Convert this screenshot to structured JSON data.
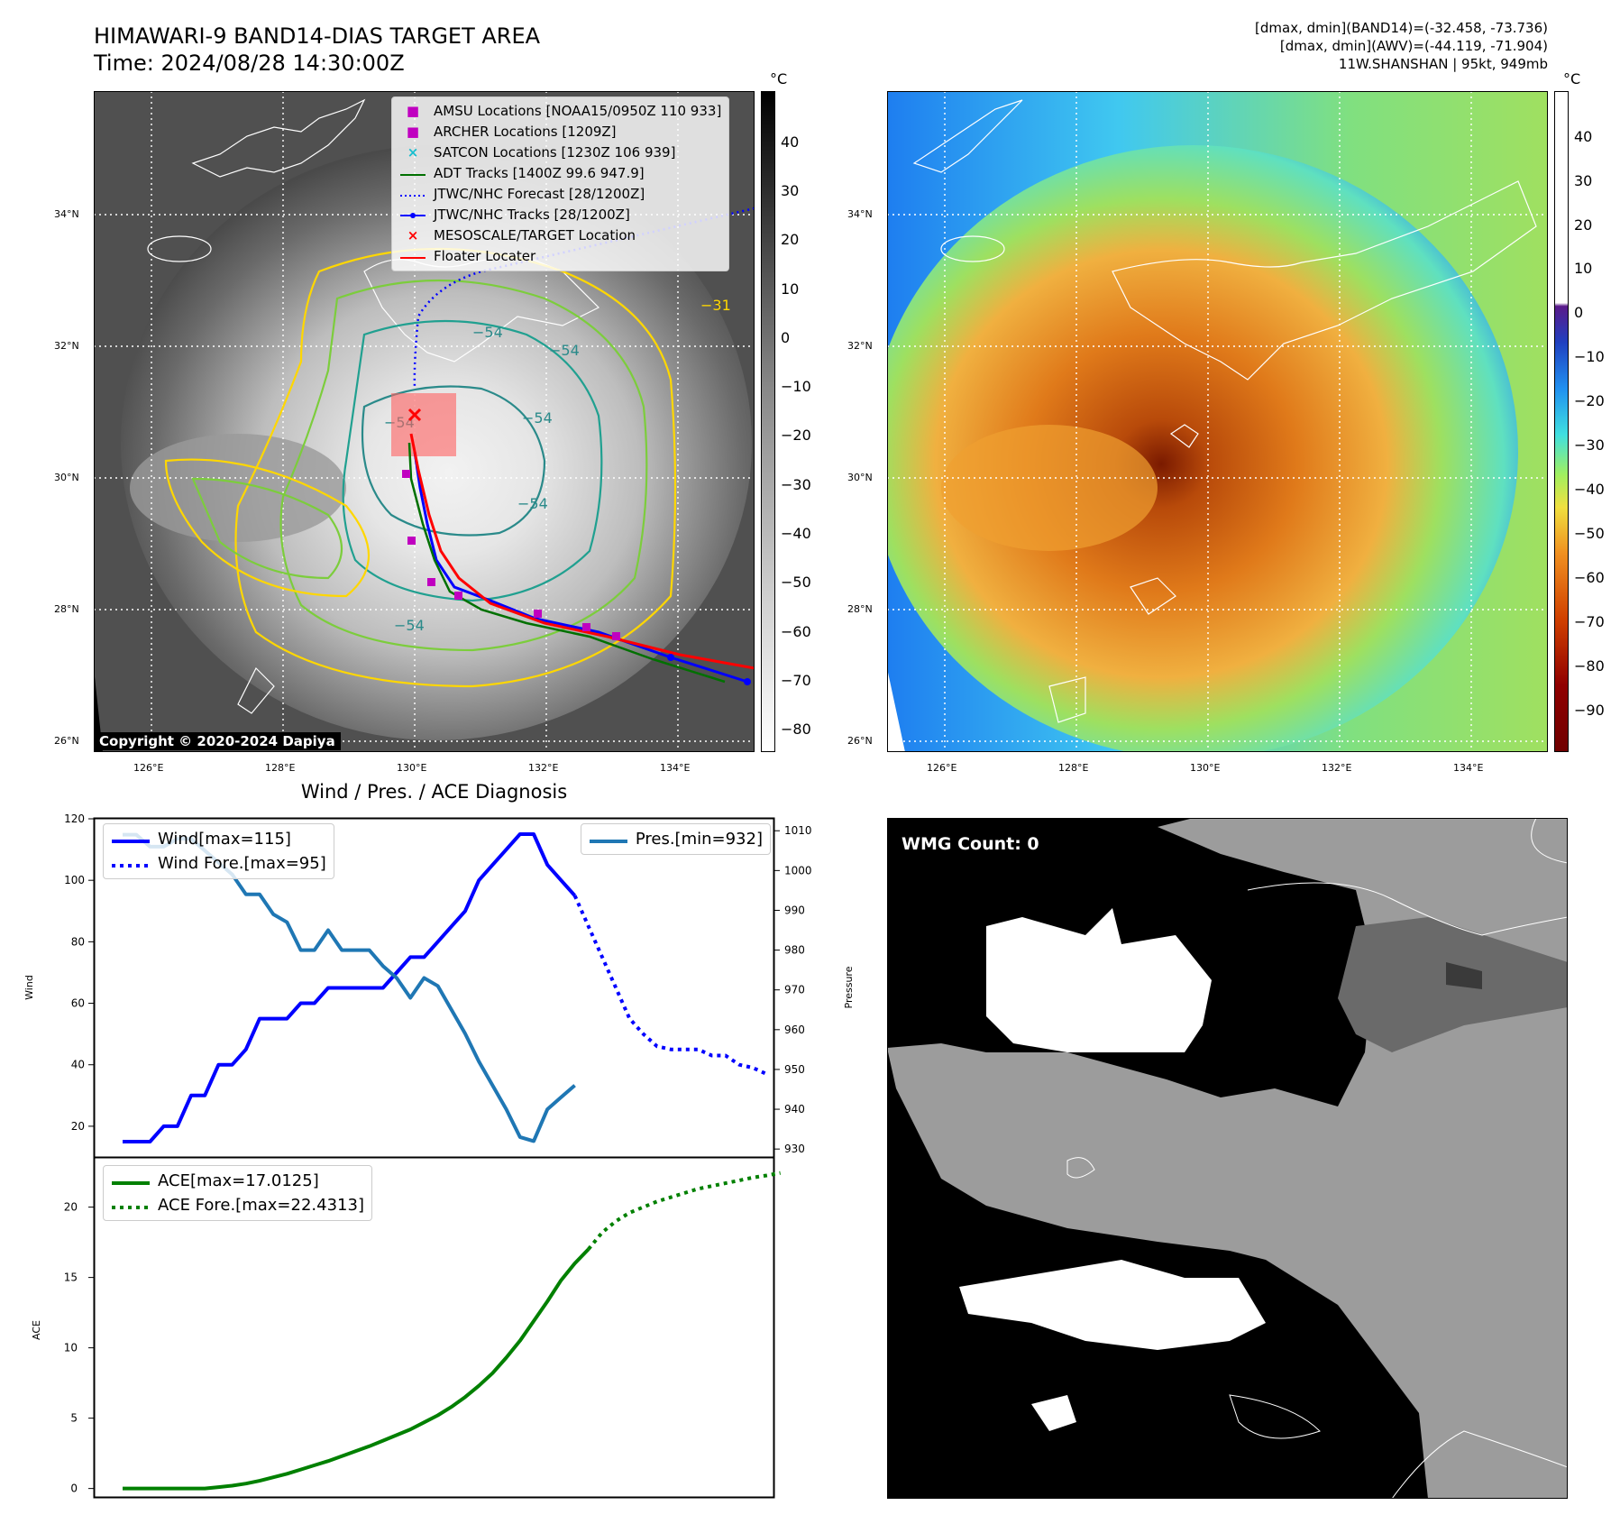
{
  "header": {
    "title": "HIMAWARI-9 BAND14-DIAS TARGET AREA",
    "time": "Time: 2024/08/28 14:30:00Z",
    "info_line1": "[dmax, dmin](BAND14)=(-32.458, -73.736)",
    "info_line2": "[dmax, dmin](AWV)=(-44.119, -71.904)",
    "info_line3": "11W.SHANSHAN | 95kt, 949mb"
  },
  "maps": {
    "lat_labels": [
      "34°N",
      "32°N",
      "30°N",
      "28°N",
      "26°N"
    ],
    "lon_labels": [
      "126°E",
      "128°E",
      "130°E",
      "132°E",
      "134°E"
    ],
    "copyright": "Copyright © 2020-2024 Dapiya",
    "contour_labels": [
      "−54",
      "−54",
      "−54",
      "−54",
      "−54",
      "−54",
      "−31"
    ],
    "legend": [
      {
        "label": "AMSU Locations [NOAA15/0950Z 110 933]",
        "symbol": "square",
        "color": "#c000c0"
      },
      {
        "label": "ARCHER Locations [1209Z]",
        "symbol": "square",
        "color": "#c000c0"
      },
      {
        "label": "SATCON Locations [1230Z 106 939]",
        "symbol": "x",
        "color": "#17becf"
      },
      {
        "label": "ADT Tracks [1400Z 99.6 947.9]",
        "symbol": "line",
        "color": "#007000"
      },
      {
        "label": "JTWC/NHC Forecast [28/1200Z]",
        "symbol": "dotted",
        "color": "#0000ff"
      },
      {
        "label": "JTWC/NHC Tracks [28/1200Z]",
        "symbol": "dotline",
        "color": "#0000ff"
      },
      {
        "label": "MESOSCALE/TARGET Location",
        "symbol": "x",
        "color": "#ff0000"
      },
      {
        "label": "Floater Locater",
        "symbol": "line",
        "color": "#ff0000"
      }
    ],
    "cb1": {
      "unit": "°C",
      "ticks": [
        "40",
        "30",
        "20",
        "10",
        "0",
        "−10",
        "−20",
        "−30",
        "−40",
        "−50",
        "−60",
        "−70",
        "−80"
      ]
    },
    "cb2": {
      "unit": "°C",
      "ticks": [
        "40",
        "30",
        "20",
        "10",
        "0",
        "−10",
        "−20",
        "−30",
        "−40",
        "−50",
        "−60",
        "−70",
        "−80",
        "−90"
      ]
    }
  },
  "wmg": {
    "label": "WMG Count: 0"
  },
  "chart_data": [
    {
      "type": "line",
      "title": "Wind / Pres. / ACE Diagnosis",
      "ylabel": "Wind",
      "ylabel_right": "Pressure",
      "ylim": [
        10,
        120
      ],
      "ylim_right": [
        928,
        1013
      ],
      "yticks": [
        "120",
        "100",
        "80",
        "60",
        "40",
        "20"
      ],
      "yticks_right": [
        "1010",
        "1000",
        "990",
        "980",
        "970",
        "960",
        "950",
        "940",
        "930"
      ],
      "series": [
        {
          "name": "Wind[max=115]",
          "color": "#0000ff",
          "style": "solid",
          "values": [
            15,
            15,
            15,
            20,
            20,
            30,
            30,
            40,
            40,
            45,
            55,
            55,
            55,
            60,
            60,
            65,
            65,
            65,
            65,
            65,
            70,
            75,
            75,
            80,
            85,
            90,
            100,
            105,
            110,
            115,
            115,
            105,
            100,
            95
          ]
        },
        {
          "name": "Wind Fore.[max=95]",
          "color": "#0000ff",
          "style": "dotted",
          "x_start": 33,
          "values": [
            95,
            85,
            75,
            65,
            55,
            50,
            46,
            45,
            45,
            45,
            43,
            43,
            40,
            39,
            37
          ]
        },
        {
          "name": "Pres.[min=932]",
          "color": "#1f77b4",
          "style": "solid",
          "axis": "right",
          "values": [
            1009,
            1009,
            1006,
            1006,
            1008,
            1008,
            1005,
            1002,
            999,
            994,
            994,
            989,
            987,
            980,
            980,
            985,
            980,
            980,
            980,
            976,
            973,
            968,
            973,
            971,
            965,
            959,
            952,
            946,
            940,
            933,
            932,
            940,
            943,
            946
          ]
        }
      ]
    },
    {
      "type": "line",
      "ylabel": "ACE",
      "ylim": [
        -0.6,
        23.5
      ],
      "yticks": [
        "20",
        "15",
        "10",
        "5",
        "0"
      ],
      "series": [
        {
          "name": "ACE[max=17.0125]",
          "color": "#008000",
          "style": "solid",
          "values": [
            0,
            0,
            0,
            0,
            0,
            0,
            0,
            0.1,
            0.2,
            0.35,
            0.55,
            0.8,
            1.05,
            1.35,
            1.65,
            1.95,
            2.3,
            2.65,
            3.0,
            3.4,
            3.8,
            4.2,
            4.7,
            5.2,
            5.8,
            6.5,
            7.3,
            8.2,
            9.3,
            10.5,
            11.9,
            13.3,
            14.8,
            16.0,
            17.0125
          ]
        },
        {
          "name": "ACE Fore.[max=22.4313]",
          "color": "#008000",
          "style": "dotted",
          "x_start": 34,
          "values": [
            17.0125,
            18.2,
            19.0,
            19.6,
            20.0,
            20.4,
            20.7,
            21.0,
            21.3,
            21.5,
            21.7,
            21.9,
            22.1,
            22.25,
            22.4313
          ]
        }
      ]
    }
  ]
}
